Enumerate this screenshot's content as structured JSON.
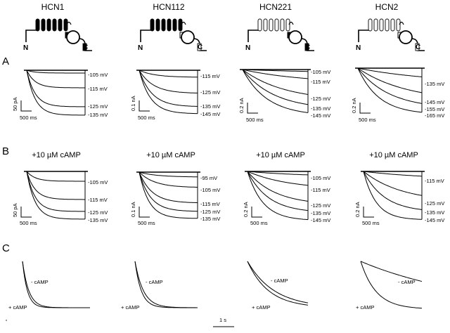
{
  "figure": {
    "panel_labels": {
      "a": "A",
      "b": "B",
      "c": "C"
    },
    "channels": [
      {
        "name": "HCN1",
        "schematic": {
          "core": "filled",
          "cterm": "filled",
          "n_label": "N",
          "c_label": "C"
        },
        "panel_a": {
          "labels": [
            "-105 mV",
            "-115 mV",
            "-125 mV",
            "-135 mV"
          ],
          "scale_current": "50 pA",
          "scale_time": "500 ms"
        },
        "panel_b": {
          "condition": "+10 µM cAMP",
          "labels": [
            "-105 mV",
            "-115 mV",
            "-125 mV",
            "-135 mV"
          ],
          "scale_current": "50 pA",
          "scale_time": "500 ms"
        },
        "panel_c": {
          "minus_label": "- cAMP",
          "plus_label": "+ cAMP"
        }
      },
      {
        "name": "HCN112",
        "schematic": {
          "core": "filled",
          "cterm": "open",
          "n_label": "N",
          "c_label": "C"
        },
        "panel_a": {
          "labels": [
            "-115 mV",
            "-125 mV",
            "-135 mV",
            "-145 mV"
          ],
          "scale_current": "0.1 nA",
          "scale_time": "500 ms"
        },
        "panel_b": {
          "condition": "+10 µM cAMP",
          "labels": [
            "-95 mV",
            "-105 mV",
            "-115 mV",
            "-125 mV",
            "-135 mV"
          ],
          "scale_current": "0.1 nA",
          "scale_time": "500 ms"
        },
        "panel_c": {
          "minus_label": "- cAMP",
          "plus_label": "+ cAMP"
        }
      },
      {
        "name": "HCN221",
        "schematic": {
          "core": "open",
          "cterm": "filled",
          "n_label": "N",
          "c_label": "C"
        },
        "panel_a": {
          "labels": [
            "-105 mV",
            "-115 mV",
            "-125 mV",
            "-135 mV",
            "-145 mV"
          ],
          "scale_current": "0.2 nA",
          "scale_time": "500 ms"
        },
        "panel_b": {
          "condition": "+10 µM cAMP",
          "labels": [
            "-105 mV",
            "-115 mV",
            "-125 mV",
            "-135 mV",
            "-145 mV"
          ],
          "scale_current": "0.2 nA",
          "scale_time": "500 ms"
        },
        "panel_c": {
          "minus_label": "- cAMP",
          "plus_label": "+ cAMP"
        }
      },
      {
        "name": "HCN2",
        "schematic": {
          "core": "open",
          "cterm": "open",
          "n_label": "N",
          "c_label": "C"
        },
        "panel_a": {
          "labels": [
            "-135 mV",
            "-145 mV",
            "-155 mV",
            "-165 mV"
          ],
          "scale_current": "0.2 nA",
          "scale_time": "500 ms"
        },
        "panel_b": {
          "condition": "+10 µM cAMP",
          "labels": [
            "-115 mV",
            "-125 mV",
            "-135 mV",
            "-145 mV"
          ],
          "scale_current": "0.2 nA",
          "scale_time": "500 ms"
        },
        "panel_c": {
          "minus_label": "- cAMP",
          "plus_label": "+ cAMP"
        }
      }
    ],
    "time_scale": "1 s"
  }
}
